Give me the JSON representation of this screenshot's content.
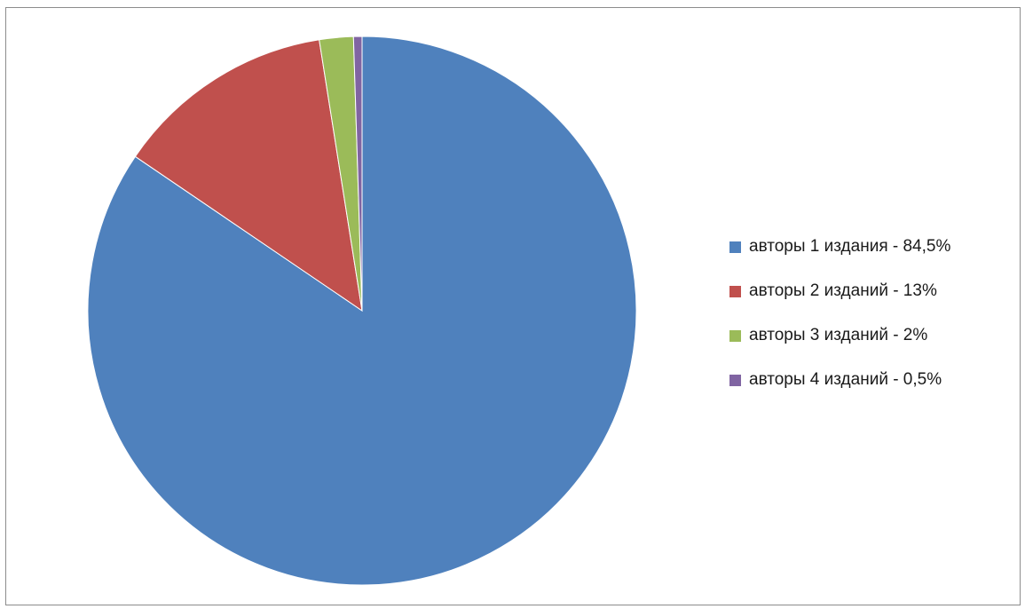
{
  "chart_data": {
    "type": "pie",
    "title": "",
    "slices": [
      {
        "label": "авторы 1 издания - 84,5%",
        "value": 84.5,
        "color": "#4F81BD"
      },
      {
        "label": "авторы 2 изданий - 13%",
        "value": 13,
        "color": "#C0504D"
      },
      {
        "label": "авторы 3 изданий - 2%",
        "value": 2,
        "color": "#9BBB59"
      },
      {
        "label": "авторы 4 изданий - 0,5%",
        "value": 0.5,
        "color": "#8064A2"
      }
    ],
    "legend_position": "right"
  }
}
